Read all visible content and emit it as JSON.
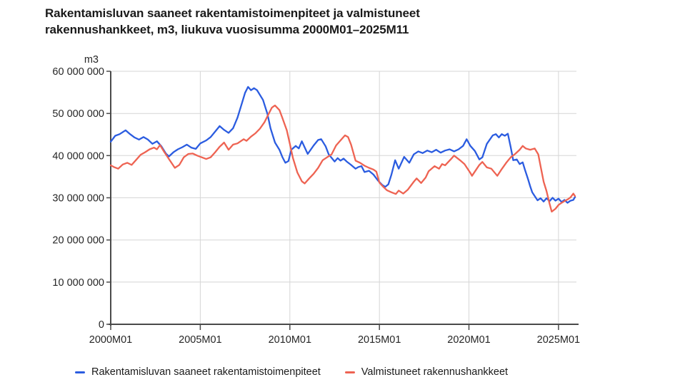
{
  "title_line1": "Rakentamisluvan saaneet rakentamistoimenpiteet ja valmistuneet",
  "title_line2": "rakennushankkeet, m3, liukuva vuosisumma 2000M01–2025M11",
  "colors": {
    "grid": "#d6d6d6",
    "axis": "#4a4a4a",
    "tick_text": "#262626",
    "title_text": "#1a1a1a",
    "background": "#ffffff"
  },
  "chart_data": {
    "type": "line",
    "title": "Rakentamisluvan saaneet rakentamistoimenpiteet ja valmistuneet rakennushankkeet, m3, liukuva vuosisumma 2000M01–2025M11",
    "unit_label": "m3",
    "values_unit": "m3, values stored in millions (value_scale 1000000), x stored as decimal year",
    "legend_position": "bottom-left",
    "x_axis": {
      "tick_values": [
        2000,
        2005,
        2010,
        2015,
        2020,
        2025
      ],
      "tick_labels": [
        "2000M01",
        "2005M01",
        "2010M01",
        "2015M01",
        "2020M01",
        "2025M01"
      ],
      "range": [
        2000,
        2026
      ],
      "grid": true
    },
    "y_axis": {
      "tick_values": [
        0,
        10,
        20,
        30,
        40,
        50,
        60
      ],
      "tick_labels": [
        "0",
        "10 000 000",
        "20 000 000",
        "30 000 000",
        "40 000 000",
        "50 000 000",
        "60 000 000"
      ],
      "range": [
        0,
        60
      ],
      "value_scale": 1000000,
      "grid": true
    },
    "series": [
      {
        "name": "Rakentamisluvan saaneet rakentamistoimenpiteet",
        "color": "#2b5ce0",
        "points": [
          [
            2000.0,
            43.3
          ],
          [
            2000.25,
            44.7
          ],
          [
            2000.5,
            45.1
          ],
          [
            2000.83,
            46.0
          ],
          [
            2001.08,
            45.1
          ],
          [
            2001.33,
            44.3
          ],
          [
            2001.58,
            43.8
          ],
          [
            2001.83,
            44.4
          ],
          [
            2002.08,
            43.8
          ],
          [
            2002.33,
            42.8
          ],
          [
            2002.58,
            43.4
          ],
          [
            2002.83,
            42.2
          ],
          [
            2003.08,
            40.5
          ],
          [
            2003.25,
            39.8
          ],
          [
            2003.5,
            40.8
          ],
          [
            2003.75,
            41.5
          ],
          [
            2004.0,
            42.0
          ],
          [
            2004.25,
            42.6
          ],
          [
            2004.5,
            41.9
          ],
          [
            2004.75,
            41.6
          ],
          [
            2005.0,
            42.9
          ],
          [
            2005.33,
            43.6
          ],
          [
            2005.58,
            44.4
          ],
          [
            2005.83,
            45.7
          ],
          [
            2006.08,
            47.0
          ],
          [
            2006.33,
            46.1
          ],
          [
            2006.58,
            45.4
          ],
          [
            2006.83,
            46.5
          ],
          [
            2007.08,
            49.0
          ],
          [
            2007.33,
            52.5
          ],
          [
            2007.5,
            54.9
          ],
          [
            2007.67,
            56.3
          ],
          [
            2007.83,
            55.5
          ],
          [
            2008.0,
            56.0
          ],
          [
            2008.17,
            55.5
          ],
          [
            2008.5,
            53.2
          ],
          [
            2008.75,
            49.9
          ],
          [
            2008.92,
            46.5
          ],
          [
            2009.17,
            43.1
          ],
          [
            2009.42,
            41.4
          ],
          [
            2009.58,
            39.7
          ],
          [
            2009.75,
            38.3
          ],
          [
            2009.92,
            38.7
          ],
          [
            2010.08,
            41.4
          ],
          [
            2010.33,
            42.3
          ],
          [
            2010.5,
            41.7
          ],
          [
            2010.67,
            43.4
          ],
          [
            2011.0,
            40.4
          ],
          [
            2011.33,
            42.4
          ],
          [
            2011.58,
            43.7
          ],
          [
            2011.75,
            43.9
          ],
          [
            2012.0,
            42.2
          ],
          [
            2012.17,
            40.3
          ],
          [
            2012.5,
            38.6
          ],
          [
            2012.67,
            39.4
          ],
          [
            2012.83,
            38.8
          ],
          [
            2013.0,
            39.3
          ],
          [
            2013.17,
            38.6
          ],
          [
            2013.42,
            37.8
          ],
          [
            2013.67,
            36.9
          ],
          [
            2013.83,
            37.3
          ],
          [
            2014.0,
            37.5
          ],
          [
            2014.17,
            36.1
          ],
          [
            2014.42,
            36.4
          ],
          [
            2014.67,
            35.5
          ],
          [
            2014.92,
            34.1
          ],
          [
            2015.17,
            33.0
          ],
          [
            2015.33,
            32.6
          ],
          [
            2015.5,
            33.2
          ],
          [
            2015.67,
            35.5
          ],
          [
            2015.88,
            38.9
          ],
          [
            2016.08,
            36.9
          ],
          [
            2016.38,
            39.7
          ],
          [
            2016.67,
            38.3
          ],
          [
            2016.92,
            40.3
          ],
          [
            2017.17,
            41.0
          ],
          [
            2017.42,
            40.6
          ],
          [
            2017.67,
            41.2
          ],
          [
            2017.92,
            40.8
          ],
          [
            2018.17,
            41.4
          ],
          [
            2018.42,
            40.7
          ],
          [
            2018.67,
            41.2
          ],
          [
            2018.92,
            41.5
          ],
          [
            2019.17,
            41.0
          ],
          [
            2019.42,
            41.5
          ],
          [
            2019.67,
            42.3
          ],
          [
            2019.87,
            43.9
          ],
          [
            2020.08,
            42.3
          ],
          [
            2020.33,
            41.1
          ],
          [
            2020.58,
            39.1
          ],
          [
            2020.75,
            39.6
          ],
          [
            2021.0,
            42.8
          ],
          [
            2021.33,
            44.8
          ],
          [
            2021.5,
            45.1
          ],
          [
            2021.67,
            44.3
          ],
          [
            2021.83,
            45.1
          ],
          [
            2022.0,
            44.7
          ],
          [
            2022.17,
            45.2
          ],
          [
            2022.33,
            42.0
          ],
          [
            2022.47,
            38.9
          ],
          [
            2022.67,
            39.1
          ],
          [
            2022.83,
            38.0
          ],
          [
            2023.0,
            38.4
          ],
          [
            2023.13,
            36.6
          ],
          [
            2023.3,
            34.4
          ],
          [
            2023.42,
            32.7
          ],
          [
            2023.53,
            31.3
          ],
          [
            2023.67,
            30.4
          ],
          [
            2023.83,
            29.4
          ],
          [
            2024.0,
            29.9
          ],
          [
            2024.17,
            29.1
          ],
          [
            2024.33,
            29.9
          ],
          [
            2024.5,
            29.2
          ],
          [
            2024.67,
            30.0
          ],
          [
            2024.83,
            29.3
          ],
          [
            2025.0,
            29.8
          ],
          [
            2025.17,
            29.0
          ],
          [
            2025.33,
            29.5
          ],
          [
            2025.5,
            28.8
          ],
          [
            2025.67,
            29.3
          ],
          [
            2025.83,
            29.5
          ],
          [
            2025.92,
            30.2
          ]
        ]
      },
      {
        "name": "Valmistuneet rakennushankkeet",
        "color": "#ee6352",
        "points": [
          [
            2000.0,
            37.7
          ],
          [
            2000.17,
            37.3
          ],
          [
            2000.42,
            36.9
          ],
          [
            2000.67,
            37.9
          ],
          [
            2000.92,
            38.3
          ],
          [
            2001.17,
            37.8
          ],
          [
            2001.42,
            39.0
          ],
          [
            2001.67,
            40.2
          ],
          [
            2001.92,
            40.8
          ],
          [
            2002.17,
            41.5
          ],
          [
            2002.42,
            41.9
          ],
          [
            2002.58,
            41.5
          ],
          [
            2002.75,
            42.5
          ],
          [
            2003.0,
            40.8
          ],
          [
            2003.25,
            39.2
          ],
          [
            2003.58,
            37.1
          ],
          [
            2003.83,
            37.8
          ],
          [
            2004.08,
            39.6
          ],
          [
            2004.33,
            40.4
          ],
          [
            2004.58,
            40.5
          ],
          [
            2004.83,
            40.0
          ],
          [
            2005.08,
            39.6
          ],
          [
            2005.33,
            39.2
          ],
          [
            2005.58,
            39.6
          ],
          [
            2005.83,
            40.8
          ],
          [
            2006.08,
            42.1
          ],
          [
            2006.33,
            43.1
          ],
          [
            2006.58,
            41.4
          ],
          [
            2006.83,
            42.6
          ],
          [
            2007.08,
            42.9
          ],
          [
            2007.42,
            43.9
          ],
          [
            2007.58,
            43.5
          ],
          [
            2007.83,
            44.5
          ],
          [
            2008.08,
            45.3
          ],
          [
            2008.33,
            46.4
          ],
          [
            2008.58,
            47.9
          ],
          [
            2008.83,
            50.0
          ],
          [
            2009.0,
            51.4
          ],
          [
            2009.17,
            51.9
          ],
          [
            2009.42,
            50.8
          ],
          [
            2009.58,
            49.0
          ],
          [
            2009.83,
            46.0
          ],
          [
            2010.0,
            42.8
          ],
          [
            2010.17,
            39.5
          ],
          [
            2010.42,
            36.0
          ],
          [
            2010.67,
            33.9
          ],
          [
            2010.83,
            33.4
          ],
          [
            2011.08,
            34.6
          ],
          [
            2011.33,
            35.7
          ],
          [
            2011.58,
            37.1
          ],
          [
            2011.83,
            38.9
          ],
          [
            2012.08,
            39.6
          ],
          [
            2012.33,
            40.3
          ],
          [
            2012.58,
            42.4
          ],
          [
            2012.83,
            43.6
          ],
          [
            2013.08,
            44.8
          ],
          [
            2013.25,
            44.4
          ],
          [
            2013.42,
            42.6
          ],
          [
            2013.67,
            38.8
          ],
          [
            2013.92,
            38.3
          ],
          [
            2014.17,
            37.6
          ],
          [
            2014.42,
            37.1
          ],
          [
            2014.67,
            36.7
          ],
          [
            2014.83,
            36.2
          ],
          [
            2015.0,
            33.6
          ],
          [
            2015.17,
            32.8
          ],
          [
            2015.42,
            31.8
          ],
          [
            2015.67,
            31.3
          ],
          [
            2015.92,
            30.9
          ],
          [
            2016.08,
            31.7
          ],
          [
            2016.33,
            31.0
          ],
          [
            2016.58,
            31.9
          ],
          [
            2016.92,
            33.8
          ],
          [
            2017.08,
            34.6
          ],
          [
            2017.33,
            33.5
          ],
          [
            2017.58,
            34.8
          ],
          [
            2017.75,
            36.3
          ],
          [
            2018.08,
            37.5
          ],
          [
            2018.33,
            36.9
          ],
          [
            2018.5,
            38.0
          ],
          [
            2018.67,
            37.7
          ],
          [
            2019.0,
            39.2
          ],
          [
            2019.17,
            40.0
          ],
          [
            2019.5,
            38.9
          ],
          [
            2019.75,
            38.0
          ],
          [
            2020.08,
            35.9
          ],
          [
            2020.17,
            35.2
          ],
          [
            2020.42,
            36.8
          ],
          [
            2020.58,
            37.8
          ],
          [
            2020.75,
            38.5
          ],
          [
            2021.0,
            37.2
          ],
          [
            2021.25,
            36.9
          ],
          [
            2021.58,
            35.2
          ],
          [
            2021.83,
            36.8
          ],
          [
            2022.08,
            38.3
          ],
          [
            2022.33,
            39.6
          ],
          [
            2022.58,
            40.4
          ],
          [
            2022.83,
            41.4
          ],
          [
            2023.0,
            42.3
          ],
          [
            2023.17,
            41.7
          ],
          [
            2023.42,
            41.4
          ],
          [
            2023.67,
            41.7
          ],
          [
            2023.87,
            40.3
          ],
          [
            2024.0,
            37.5
          ],
          [
            2024.17,
            33.8
          ],
          [
            2024.33,
            31.6
          ],
          [
            2024.5,
            28.6
          ],
          [
            2024.62,
            26.7
          ],
          [
            2024.83,
            27.4
          ],
          [
            2025.0,
            28.3
          ],
          [
            2025.17,
            28.8
          ],
          [
            2025.33,
            29.2
          ],
          [
            2025.5,
            29.6
          ],
          [
            2025.67,
            30.1
          ],
          [
            2025.83,
            31.0
          ],
          [
            2025.92,
            30.4
          ]
        ]
      }
    ]
  }
}
